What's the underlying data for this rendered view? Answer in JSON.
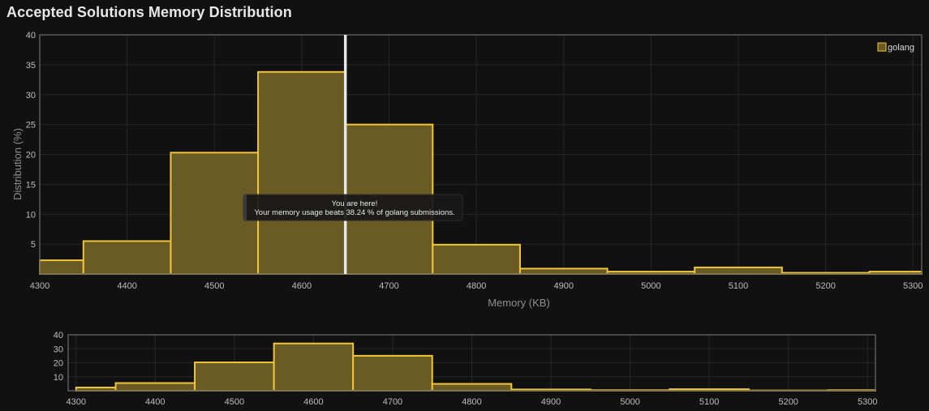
{
  "page": {
    "title": "Accepted Solutions Memory Distribution"
  },
  "colors": {
    "bar_fill": "#6a5a24",
    "bar_stroke": "#f0c53a",
    "marker": "#e6e6e6"
  },
  "chart_data": [
    {
      "type": "bar",
      "subtype": "histogram",
      "xlabel": "Memory (KB)",
      "ylabel": "Distribution (%)",
      "xlim": [
        4300,
        5310
      ],
      "ylim": [
        0,
        40
      ],
      "xticks": [
        4300,
        4400,
        4500,
        4600,
        4700,
        4800,
        4900,
        5000,
        5100,
        5200,
        5300
      ],
      "yticks": [
        5,
        10,
        15,
        20,
        25,
        30,
        35,
        40
      ],
      "grid": true,
      "legend_position": "top-right",
      "series": [
        {
          "name": "golang",
          "bins": [
            {
              "x0": 4300,
              "x1": 4350,
              "value": 2.3
            },
            {
              "x0": 4350,
              "x1": 4450,
              "value": 5.5
            },
            {
              "x0": 4450,
              "x1": 4550,
              "value": 20.3
            },
            {
              "x0": 4550,
              "x1": 4650,
              "value": 33.8
            },
            {
              "x0": 4650,
              "x1": 4750,
              "value": 25.0
            },
            {
              "x0": 4750,
              "x1": 4850,
              "value": 4.9
            },
            {
              "x0": 4850,
              "x1": 4950,
              "value": 0.9
            },
            {
              "x0": 4950,
              "x1": 5050,
              "value": 0.4
            },
            {
              "x0": 5050,
              "x1": 5150,
              "value": 1.1
            },
            {
              "x0": 5150,
              "x1": 5250,
              "value": 0.2
            },
            {
              "x0": 5250,
              "x1": 5310,
              "value": 0.4
            }
          ]
        }
      ],
      "marker": {
        "x": 4650
      },
      "tooltip": {
        "line1": "You are here!",
        "line2": "Your memory usage beats 38.24 % of golang submissions."
      }
    },
    {
      "type": "bar",
      "subtype": "histogram-navigator",
      "xlim": [
        4290,
        5310
      ],
      "ylim": [
        0,
        40
      ],
      "xticks": [
        4300,
        4400,
        4500,
        4600,
        4700,
        4800,
        4900,
        5000,
        5100,
        5200,
        5300
      ],
      "yticks": [
        10,
        20,
        30,
        40
      ],
      "grid": true
    }
  ]
}
